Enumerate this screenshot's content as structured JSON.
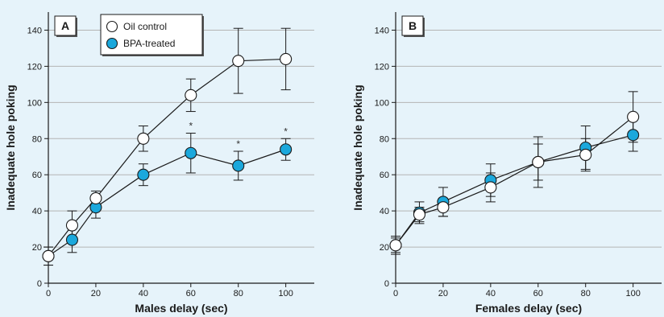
{
  "chart_data": [
    {
      "type": "line",
      "panel_label": "A",
      "xlabel": "Males delay (sec)",
      "ylabel": "Inadequate hole poking",
      "xlim": [
        0,
        112
      ],
      "ylim": [
        0,
        150
      ],
      "xticks": [
        0,
        20,
        40,
        60,
        80,
        100
      ],
      "yticks": [
        0,
        20,
        40,
        60,
        80,
        100,
        120,
        140
      ],
      "x": [
        0,
        10,
        20,
        40,
        60,
        80,
        100
      ],
      "grid": true,
      "legend_position": "top-left",
      "series": [
        {
          "name": "Oil control",
          "marker": "open-circle",
          "values": [
            15,
            32,
            47,
            80,
            104,
            123,
            124
          ],
          "error": [
            5,
            8,
            4,
            7,
            9,
            18,
            17
          ]
        },
        {
          "name": "BPA-treated",
          "marker": "filled-circle",
          "values": [
            15,
            24,
            42,
            60,
            72,
            65,
            74
          ],
          "error": [
            5,
            7,
            6,
            6,
            11,
            8,
            6
          ]
        }
      ],
      "significance": [
        {
          "x": 60,
          "label": "*"
        },
        {
          "x": 80,
          "label": "*"
        },
        {
          "x": 100,
          "label": "*"
        }
      ]
    },
    {
      "type": "line",
      "panel_label": "B",
      "xlabel": "Females delay (sec)",
      "ylabel": "Inadequate hole poking",
      "xlim": [
        0,
        112
      ],
      "ylim": [
        0,
        150
      ],
      "xticks": [
        0,
        20,
        40,
        60,
        80,
        100
      ],
      "yticks": [
        0,
        20,
        40,
        60,
        80,
        100,
        120,
        140
      ],
      "x": [
        0,
        10,
        20,
        40,
        60,
        80,
        100
      ],
      "grid": true,
      "series": [
        {
          "name": "Oil control",
          "marker": "open-circle",
          "values": [
            21,
            38,
            42,
            53,
            67,
            71,
            92
          ],
          "error": [
            4,
            4,
            5,
            8,
            14,
            9,
            14
          ]
        },
        {
          "name": "BPA-treated",
          "marker": "filled-circle",
          "values": [
            21,
            39,
            45,
            57,
            67,
            75,
            82
          ],
          "error": [
            5,
            6,
            8,
            9,
            10,
            12,
            9
          ]
        }
      ],
      "significance": []
    }
  ],
  "colors": {
    "background": "#e6f3fa",
    "grid": "#b4b4b4",
    "line": "#1a1a1a",
    "bpa_fill": "#1ba8dc",
    "control_fill": "#ffffff"
  }
}
